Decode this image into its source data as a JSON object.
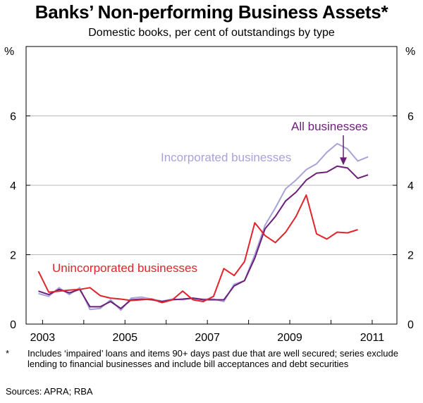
{
  "title": "Banks’ Non-performing Business Assets*",
  "subtitle": "Domestic books, per cent of outstandings by type",
  "footnote_marker": "*",
  "footnote": "Includes ‘impaired’ loans and items 90+ days past due that are well secured; series exclude lending to financial businesses and include bill acceptances and debt securities",
  "sources": "Sources: APRA; RBA",
  "chart_data": {
    "type": "line",
    "title": "Banks’ Non-performing Business Assets*",
    "subtitle": "Domestic books, per cent of outstandings by type",
    "y_unit_left": "%",
    "y_unit_right": "%",
    "ylim": [
      0,
      8
    ],
    "yticks": [
      0,
      2,
      4,
      6
    ],
    "xlim": [
      2002.6,
      2011.6
    ],
    "xticks": [
      2003,
      2005,
      2007,
      2009,
      2011
    ],
    "xtick_labels": [
      "2003",
      "2005",
      "2007",
      "2009",
      "2011"
    ],
    "grid": true,
    "x": [
      2002.9,
      2003.15,
      2003.4,
      2003.65,
      2003.9,
      2004.15,
      2004.4,
      2004.65,
      2004.9,
      2005.15,
      2005.4,
      2005.65,
      2005.9,
      2006.15,
      2006.4,
      2006.65,
      2006.9,
      2007.15,
      2007.4,
      2007.65,
      2007.9,
      2008.15,
      2008.4,
      2008.65,
      2008.9,
      2009.15,
      2009.4,
      2009.65,
      2009.9,
      2010.15,
      2010.4,
      2010.65,
      2010.9,
      2011.15
    ],
    "series": [
      {
        "name": "All businesses",
        "color": "#6b1f78",
        "values": [
          0.95,
          0.85,
          1.0,
          0.9,
          1.0,
          0.5,
          0.5,
          0.65,
          0.45,
          0.7,
          0.72,
          0.7,
          0.65,
          0.7,
          0.72,
          0.75,
          0.7,
          0.7,
          0.7,
          1.1,
          1.25,
          1.9,
          2.75,
          3.1,
          3.55,
          3.8,
          4.15,
          4.35,
          4.38,
          4.55,
          4.5,
          4.2,
          4.3,
          null
        ]
      },
      {
        "name": "Incorporated businesses",
        "color": "#a7a3d9",
        "values": [
          0.88,
          0.8,
          1.05,
          0.85,
          1.05,
          0.42,
          0.45,
          0.7,
          0.4,
          0.75,
          0.78,
          0.72,
          0.66,
          0.72,
          0.7,
          0.75,
          0.72,
          0.72,
          0.65,
          1.15,
          1.25,
          2.0,
          2.85,
          3.35,
          3.9,
          4.15,
          4.45,
          4.62,
          4.95,
          5.2,
          5.05,
          4.7,
          4.82,
          null
        ]
      },
      {
        "name": "Unincorporated businesses",
        "color": "#e3232b",
        "values": [
          1.52,
          0.92,
          0.95,
          0.98,
          1.0,
          1.05,
          0.82,
          0.75,
          0.72,
          0.68,
          0.7,
          0.72,
          0.62,
          0.7,
          0.95,
          0.7,
          0.65,
          0.8,
          1.6,
          1.4,
          1.8,
          2.92,
          2.55,
          2.35,
          2.65,
          3.1,
          3.72,
          2.6,
          2.45,
          2.65,
          2.63,
          2.72,
          null,
          null
        ]
      }
    ],
    "annotations": [
      {
        "text": "All businesses",
        "color": "#6b1f78",
        "arrow_to": {
          "x": 2010.3,
          "y": 4.5
        }
      }
    ]
  }
}
